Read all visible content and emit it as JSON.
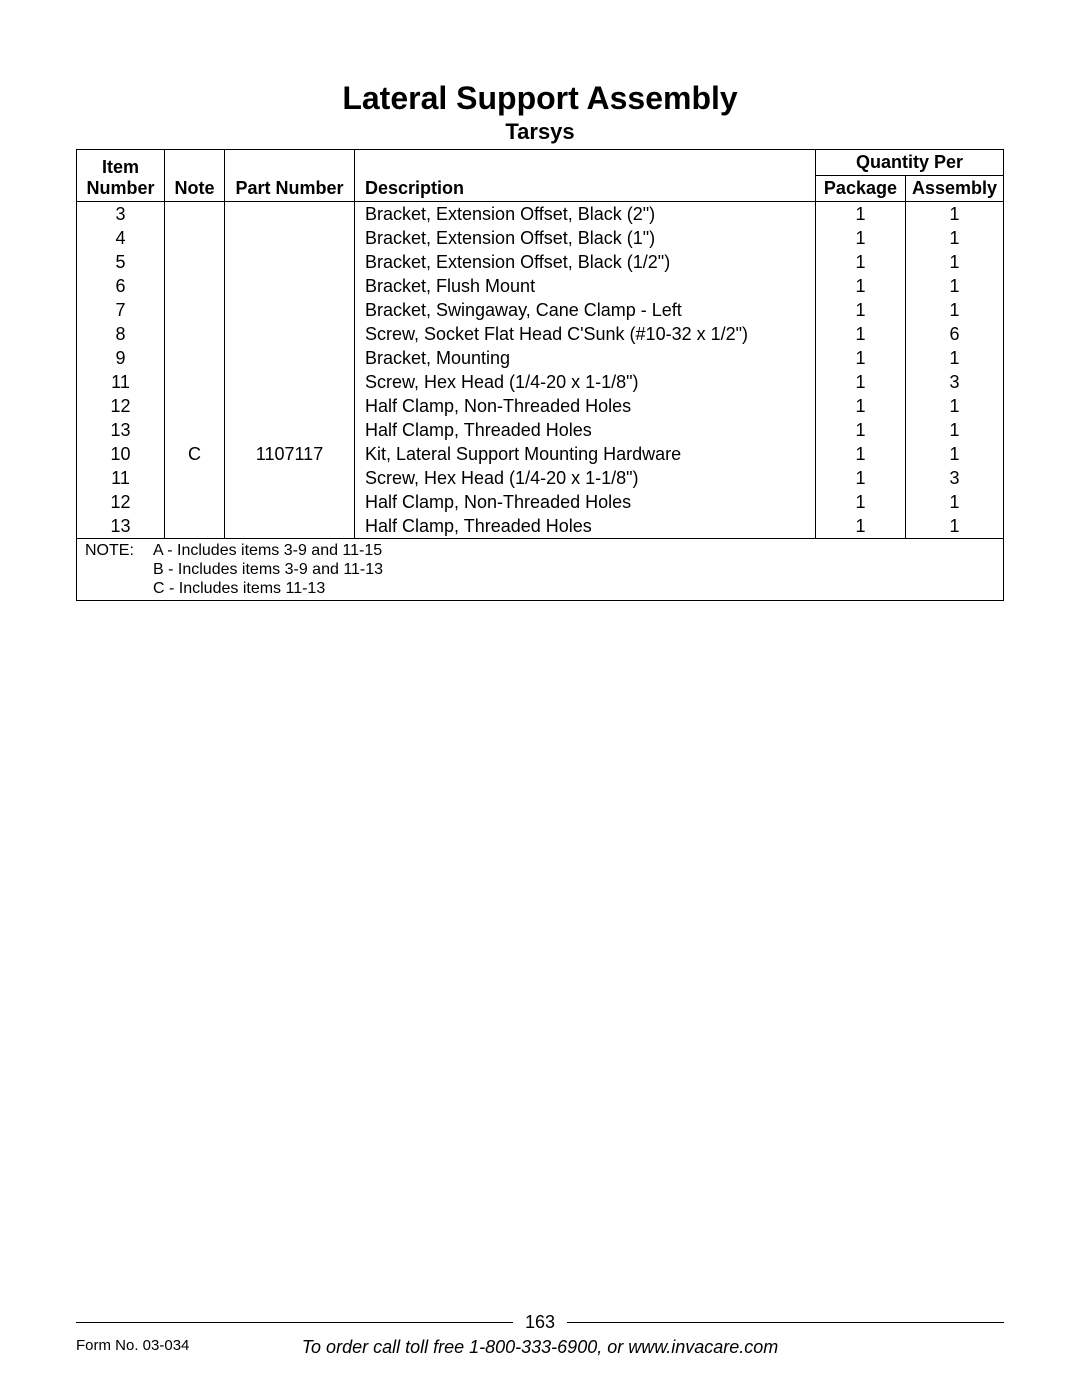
{
  "title": "Lateral Support Assembly",
  "subtitle": "Tarsys",
  "headers": {
    "item_number_line1": "Item",
    "item_number_line2": "Number",
    "note": "Note",
    "part_number": "Part Number",
    "description": "Description",
    "quantity_per": "Quantity Per",
    "package": "Package",
    "assembly": "Assembly"
  },
  "rows": [
    {
      "item": "3",
      "note": "",
      "part": "",
      "desc": "Bracket, Extension Offset, Black (2\")",
      "pkg": "1",
      "asm": "1"
    },
    {
      "item": "4",
      "note": "",
      "part": "",
      "desc": "Bracket, Extension Offset, Black (1\")",
      "pkg": "1",
      "asm": "1"
    },
    {
      "item": "5",
      "note": "",
      "part": "",
      "desc": "Bracket, Extension Offset, Black (1/2\")",
      "pkg": "1",
      "asm": "1"
    },
    {
      "item": "6",
      "note": "",
      "part": "",
      "desc": "Bracket, Flush Mount",
      "pkg": "1",
      "asm": "1"
    },
    {
      "item": "7",
      "note": "",
      "part": "",
      "desc": "Bracket, Swingaway, Cane Clamp - Left",
      "pkg": "1",
      "asm": "1"
    },
    {
      "item": "8",
      "note": "",
      "part": "",
      "desc": "Screw, Socket Flat Head C'Sunk (#10-32 x 1/2\")",
      "pkg": "1",
      "asm": "6"
    },
    {
      "item": "9",
      "note": "",
      "part": "",
      "desc": "Bracket, Mounting",
      "pkg": "1",
      "asm": "1"
    },
    {
      "item": "11",
      "note": "",
      "part": "",
      "desc": "Screw, Hex Head (1/4-20 x 1-1/8\")",
      "pkg": "1",
      "asm": "3"
    },
    {
      "item": "12",
      "note": "",
      "part": "",
      "desc": "Half Clamp, Non-Threaded Holes",
      "pkg": "1",
      "asm": "1"
    },
    {
      "item": "13",
      "note": "",
      "part": "",
      "desc": "Half Clamp, Threaded Holes",
      "pkg": "1",
      "asm": "1"
    },
    {
      "item": "10",
      "note": "C",
      "part": "1107117",
      "desc": "Kit, Lateral Support Mounting Hardware",
      "pkg": "1",
      "asm": "1"
    },
    {
      "item": "11",
      "note": "",
      "part": "",
      "desc": "Screw, Hex Head (1/4-20 x 1-1/8\")",
      "pkg": "1",
      "asm": "3"
    },
    {
      "item": "12",
      "note": "",
      "part": "",
      "desc": "Half Clamp, Non-Threaded Holes",
      "pkg": "1",
      "asm": "1"
    },
    {
      "item": "13",
      "note": "",
      "part": "",
      "desc": "Half Clamp, Threaded Holes",
      "pkg": "1",
      "asm": "1"
    }
  ],
  "notes": {
    "label": "NOTE:",
    "lines": [
      "A - Includes items 3-9 and 11-15",
      "B - Includes items 3-9 and 11-13",
      "C - Includes items 11-13"
    ]
  },
  "page_number": "163",
  "form_no": "Form No. 03-034",
  "order_text": "To order call toll free 1-800-333-6900, or www.invacare.com"
}
